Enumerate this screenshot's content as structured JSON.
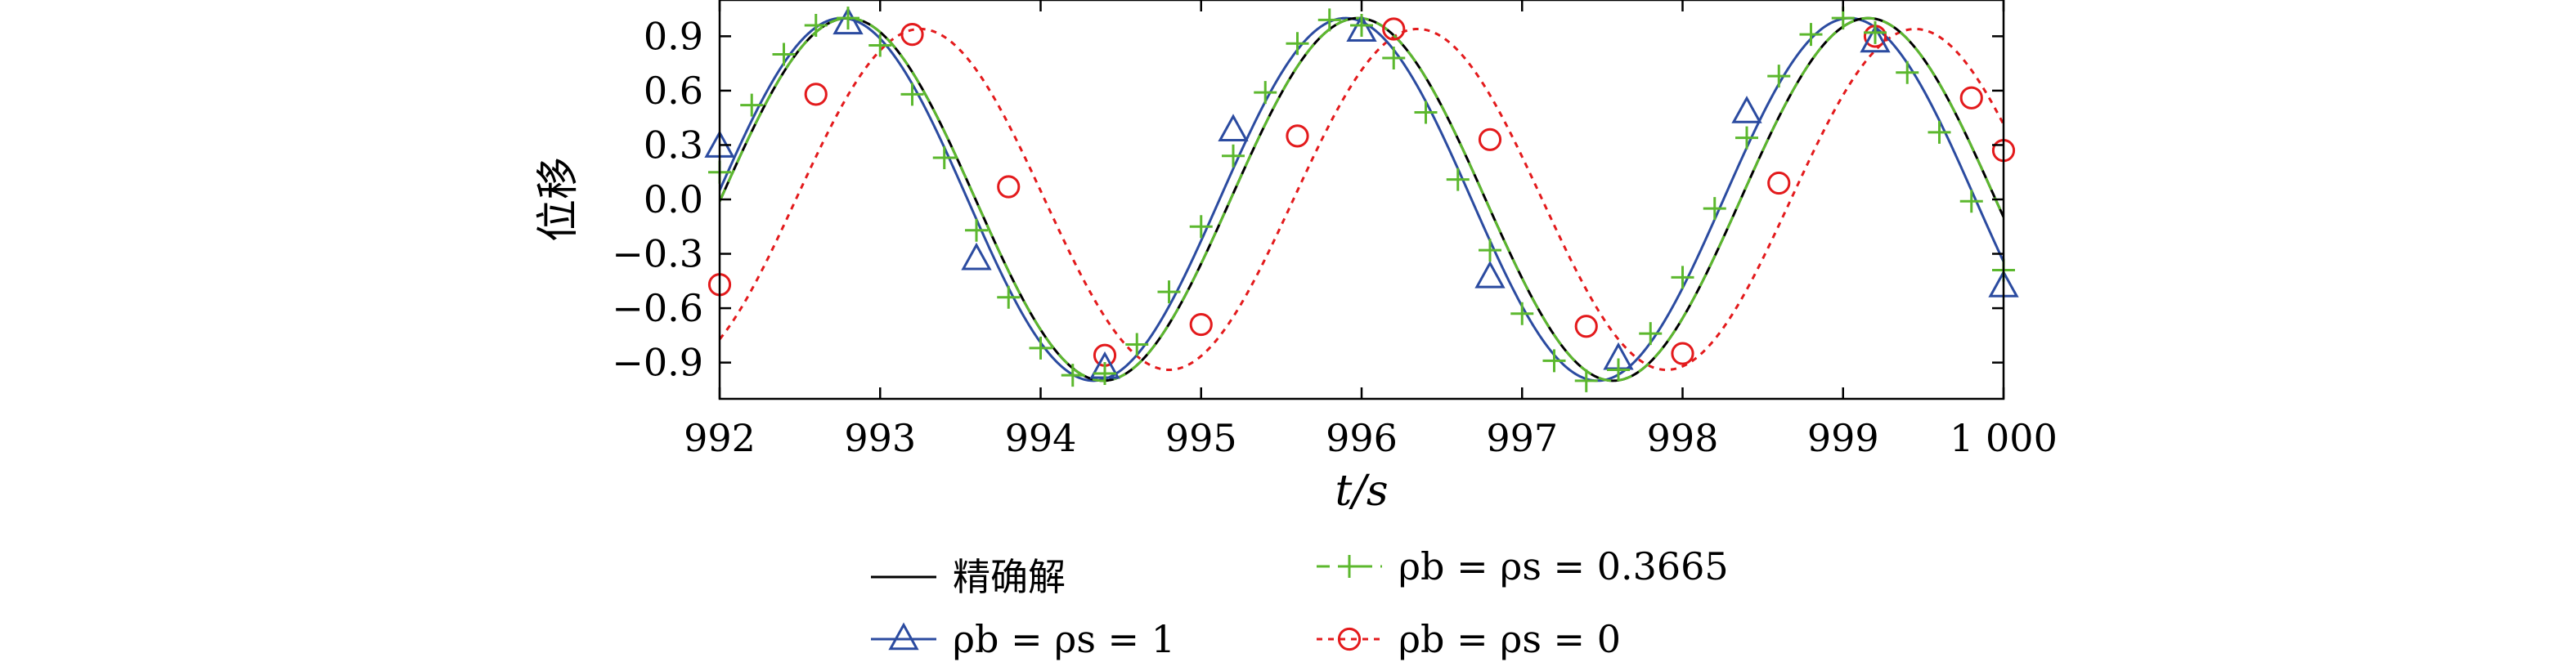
{
  "chart_data": {
    "type": "line",
    "title": "",
    "xlabel": "t/s",
    "ylabel": "位移",
    "xlim": [
      992,
      1000
    ],
    "ylim": [
      -1.1,
      1.1
    ],
    "xticks": [
      992,
      993,
      994,
      995,
      996,
      997,
      998,
      999,
      1000
    ],
    "xtick_labels": [
      "992",
      "993",
      "994",
      "995",
      "996",
      "997",
      "998",
      "999",
      "1 000"
    ],
    "yticks": [
      -0.9,
      -0.6,
      -0.3,
      0.0,
      0.3,
      0.6,
      0.9
    ],
    "ytick_labels": [
      "−0.9",
      "−0.6",
      "−0.3",
      "0.0",
      "0.3",
      "0.6",
      "0.9"
    ],
    "grid": false,
    "legend_position": "bottom",
    "series": [
      {
        "name": "精确解",
        "color": "#000000",
        "style": "solid",
        "marker": "none",
        "curve": {
          "amplitude": 1.0,
          "period_s": 3.178,
          "peak_t": 992.8
        }
      },
      {
        "name": "ρb = ρs = 1",
        "color": "#2b4ba0",
        "style": "solid",
        "marker": "triangle",
        "curve": {
          "amplitude": 1.0,
          "period_s": 3.14,
          "peak_t": 992.76
        },
        "points": [
          {
            "x": 992.0,
            "y": 0.29
          },
          {
            "x": 992.8,
            "y": 0.97
          },
          {
            "x": 993.6,
            "y": -0.33
          },
          {
            "x": 994.4,
            "y": -0.93
          },
          {
            "x": 995.2,
            "y": 0.38
          },
          {
            "x": 996.0,
            "y": 0.93
          },
          {
            "x": 996.8,
            "y": -0.43
          },
          {
            "x": 997.6,
            "y": -0.88
          },
          {
            "x": 998.4,
            "y": 0.48
          },
          {
            "x": 999.2,
            "y": 0.87
          },
          {
            "x": 1000.0,
            "y": -0.48
          }
        ]
      },
      {
        "name": "ρb = ρs = 0.3665",
        "color": "#5cb82e",
        "style": "dashed",
        "marker": "plus",
        "curve": {
          "amplitude": 1.0,
          "period_s": 3.178,
          "peak_t": 992.8
        },
        "points": [
          {
            "x": 992.0,
            "y": 0.15
          },
          {
            "x": 992.2,
            "y": 0.52
          },
          {
            "x": 992.4,
            "y": 0.8
          },
          {
            "x": 992.6,
            "y": 0.96
          },
          {
            "x": 992.8,
            "y": 1.0
          },
          {
            "x": 993.0,
            "y": 0.85
          },
          {
            "x": 993.2,
            "y": 0.58
          },
          {
            "x": 993.4,
            "y": 0.23
          },
          {
            "x": 993.6,
            "y": -0.17
          },
          {
            "x": 993.8,
            "y": -0.54
          },
          {
            "x": 994.0,
            "y": -0.82
          },
          {
            "x": 994.2,
            "y": -0.97
          },
          {
            "x": 994.4,
            "y": -0.96
          },
          {
            "x": 994.6,
            "y": -0.8
          },
          {
            "x": 994.8,
            "y": -0.51
          },
          {
            "x": 995.0,
            "y": -0.15
          },
          {
            "x": 995.2,
            "y": 0.24
          },
          {
            "x": 995.4,
            "y": 0.59
          },
          {
            "x": 995.6,
            "y": 0.86
          },
          {
            "x": 995.8,
            "y": 0.99
          },
          {
            "x": 996.0,
            "y": 0.96
          },
          {
            "x": 996.2,
            "y": 0.78
          },
          {
            "x": 996.4,
            "y": 0.48
          },
          {
            "x": 996.6,
            "y": 0.11
          },
          {
            "x": 996.8,
            "y": -0.28
          },
          {
            "x": 997.0,
            "y": -0.63
          },
          {
            "x": 997.2,
            "y": -0.89
          },
          {
            "x": 997.4,
            "y": -1.0
          },
          {
            "x": 997.6,
            "y": -0.94
          },
          {
            "x": 997.8,
            "y": -0.74
          },
          {
            "x": 998.0,
            "y": -0.43
          },
          {
            "x": 998.2,
            "y": -0.05
          },
          {
            "x": 998.4,
            "y": 0.34
          },
          {
            "x": 998.6,
            "y": 0.68
          },
          {
            "x": 998.8,
            "y": 0.91
          },
          {
            "x": 999.0,
            "y": 1.0
          },
          {
            "x": 999.2,
            "y": 0.92
          },
          {
            "x": 999.4,
            "y": 0.7
          },
          {
            "x": 999.6,
            "y": 0.37
          },
          {
            "x": 999.8,
            "y": -0.01
          },
          {
            "x": 1000.0,
            "y": -0.39
          }
        ]
      },
      {
        "name": "ρb = ρs = 0",
        "color": "#e31a1c",
        "style": "dotted",
        "marker": "circle",
        "curve": {
          "amplitude": 0.94,
          "period_s": 3.1,
          "peak_t": 993.25
        },
        "points": [
          {
            "x": 992.0,
            "y": -0.47
          },
          {
            "x": 992.6,
            "y": 0.58
          },
          {
            "x": 993.2,
            "y": 0.91
          },
          {
            "x": 993.8,
            "y": 0.07
          },
          {
            "x": 994.4,
            "y": -0.86
          },
          {
            "x": 995.0,
            "y": -0.69
          },
          {
            "x": 995.6,
            "y": 0.35
          },
          {
            "x": 996.2,
            "y": 0.94
          },
          {
            "x": 996.8,
            "y": 0.33
          },
          {
            "x": 997.4,
            "y": -0.7
          },
          {
            "x": 998.0,
            "y": -0.85
          },
          {
            "x": 998.6,
            "y": 0.09
          },
          {
            "x": 999.2,
            "y": 0.9
          },
          {
            "x": 999.8,
            "y": 0.56
          },
          {
            "x": 1000.0,
            "y": 0.27
          }
        ]
      }
    ]
  }
}
